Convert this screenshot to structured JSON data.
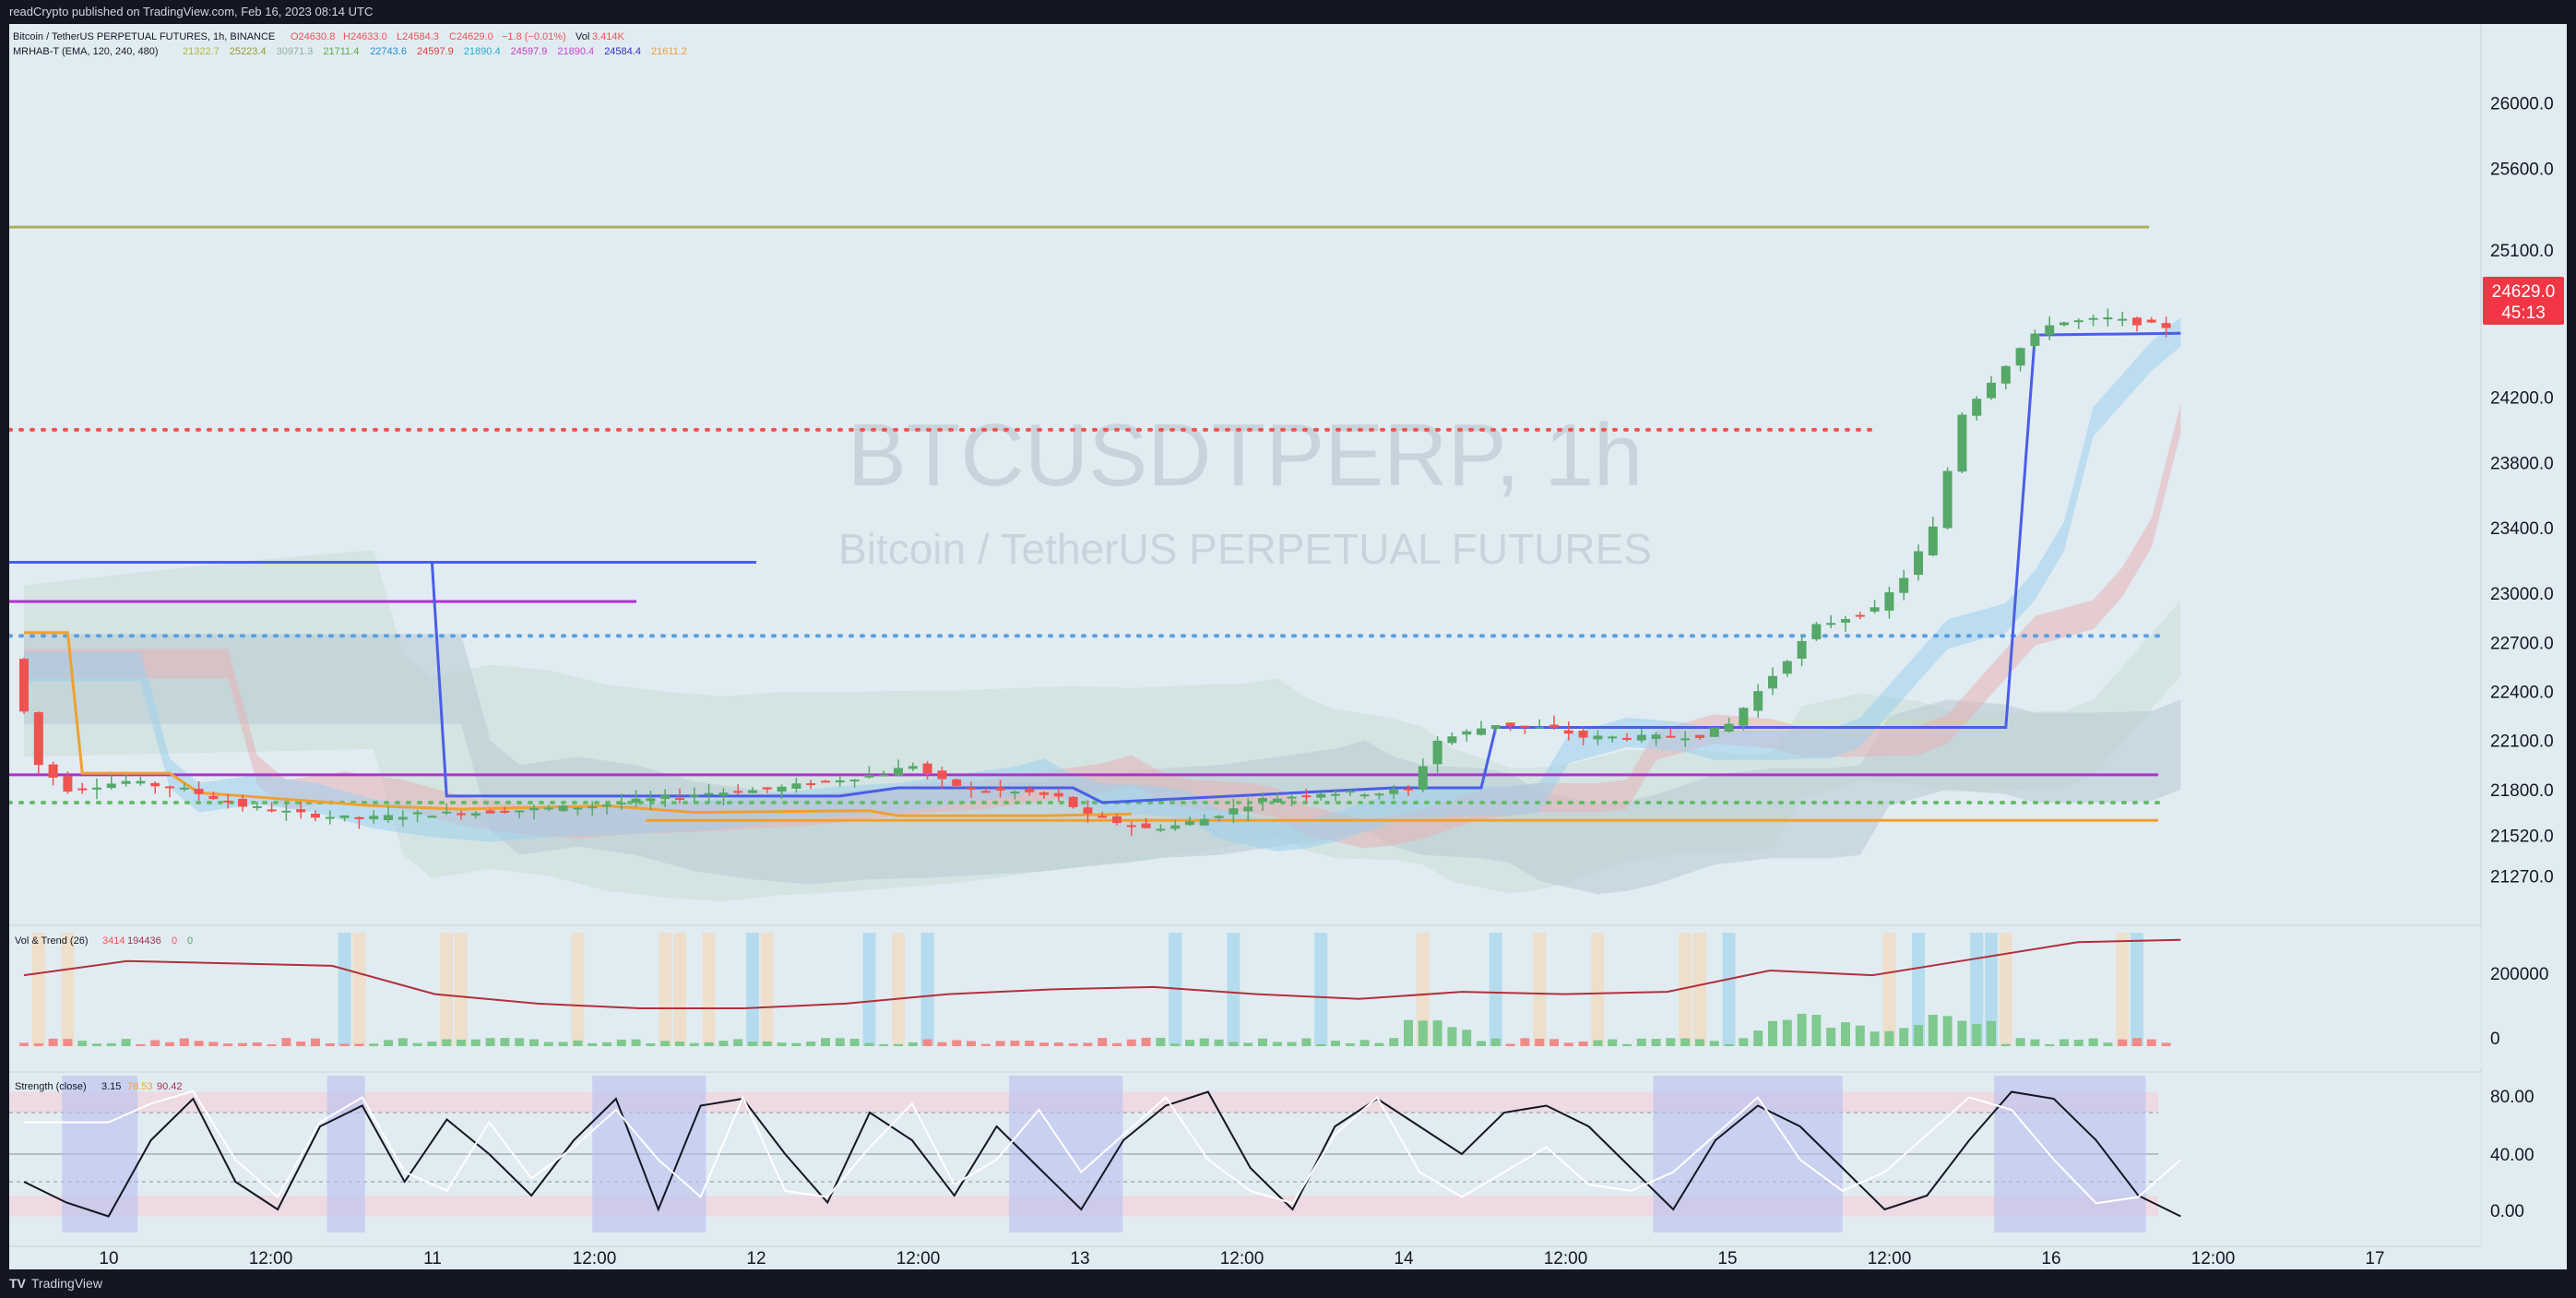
{
  "publish_note": "readCrypto published on TradingView.com, Feb 16, 2023 08:14 UTC",
  "footer_brand": "TradingView",
  "legend": {
    "title": "Bitcoin / TetherUS PERPETUAL FUTURES, 1h, BINANCE",
    "o": "O24630.8",
    "h": "H24633.0",
    "l": "L24584.3",
    "c": "C24629.0",
    "chg": "−1.8 (−0.01%)",
    "vol_label": "Vol",
    "vol": "3.414K",
    "mrhab_name": "MRHAB-T (EMA, 120, 240, 480)",
    "mrhab_values": [
      {
        "v": "21322.7",
        "color": "#b5b83a"
      },
      {
        "v": "25223.4",
        "color": "#9a9a30"
      },
      {
        "v": "30971.3",
        "color": "#8fb0a0"
      },
      {
        "v": "21711.4",
        "color": "#5ab04a"
      },
      {
        "v": "22743.6",
        "color": "#2a8fd0"
      },
      {
        "v": "24597.9",
        "color": "#e03c3c"
      },
      {
        "v": "21890.4",
        "color": "#20b0c8"
      },
      {
        "v": "24597.9",
        "color": "#c040c0"
      },
      {
        "v": "21890.4",
        "color": "#d040d0"
      },
      {
        "v": "24584.4",
        "color": "#3030c0"
      },
      {
        "v": "21611.2",
        "color": "#f0a030"
      }
    ]
  },
  "watermark": {
    "symbol": "BTCUSDTPERP, 1h",
    "desc": "Bitcoin / TetherUS PERPETUAL FUTURES"
  },
  "price_axis": {
    "labels": [
      "26000.0",
      "25600.0",
      "25100.0",
      "24200.0",
      "23800.0",
      "23400.0",
      "23000.0",
      "22700.0",
      "22400.0",
      "22100.0",
      "21800.0",
      "21520.0",
      "21270.0"
    ],
    "last_price": "24629.0",
    "countdown": "45:13"
  },
  "vol_panel": {
    "label": "Vol & Trend (26)",
    "v1": "3414",
    "v2": "194436",
    "v3": "0",
    "v4": "0",
    "axis": [
      "200000",
      "0"
    ]
  },
  "strength_panel": {
    "label": "Strength (close)",
    "v1": "3.15",
    "v2": "78.53",
    "v3": "90.42",
    "axis": [
      "80.00",
      "40.00",
      "0.00"
    ]
  },
  "time_axis": [
    "10",
    "12:00",
    "11",
    "12:00",
    "12",
    "12:00",
    "13",
    "12:00",
    "14",
    "12:00",
    "15",
    "12:00",
    "16",
    "12:00",
    "17"
  ],
  "colors": {
    "up": "#55a868",
    "down": "#ef5350",
    "frame_bg": "#e1ecf2",
    "bar_bg": "#131722",
    "price_tag": "#f23645"
  },
  "chart_data": [
    {
      "type": "candlestick",
      "title": "Bitcoin / TetherUS PERPETUAL FUTURES, 1h, BINANCE",
      "interval": "1h",
      "x": [
        "10",
        "12:00",
        "11",
        "12:00",
        "12",
        "12:00",
        "13",
        "12:00",
        "14",
        "12:00",
        "15",
        "12:00",
        "16",
        "12:00",
        "17"
      ],
      "ylim": [
        21150,
        26200
      ],
      "close_path_hours": [
        [
          0,
          22600
        ],
        [
          2,
          21950
        ],
        [
          4,
          21800
        ],
        [
          8,
          21850
        ],
        [
          12,
          21800
        ],
        [
          16,
          21700
        ],
        [
          20,
          21650
        ],
        [
          24,
          21620
        ],
        [
          28,
          21650
        ],
        [
          32,
          21660
        ],
        [
          36,
          21680
        ],
        [
          40,
          21700
        ],
        [
          44,
          21740
        ],
        [
          48,
          21780
        ],
        [
          52,
          21800
        ],
        [
          56,
          21850
        ],
        [
          60,
          21900
        ],
        [
          62,
          21950
        ],
        [
          64,
          21850
        ],
        [
          66,
          21800
        ],
        [
          70,
          21780
        ],
        [
          72,
          21750
        ],
        [
          74,
          21640
        ],
        [
          76,
          21600
        ],
        [
          78,
          21560
        ],
        [
          80,
          21580
        ],
        [
          82,
          21620
        ],
        [
          84,
          21680
        ],
        [
          86,
          21740
        ],
        [
          90,
          21780
        ],
        [
          94,
          21780
        ],
        [
          96,
          21800
        ],
        [
          98,
          22100
        ],
        [
          100,
          22150
        ],
        [
          102,
          22200
        ],
        [
          106,
          22170
        ],
        [
          108,
          22120
        ],
        [
          112,
          22120
        ],
        [
          116,
          22130
        ],
        [
          118,
          22200
        ],
        [
          120,
          22400
        ],
        [
          122,
          22600
        ],
        [
          124,
          22800
        ],
        [
          128,
          22900
        ],
        [
          130,
          23100
        ],
        [
          132,
          23400
        ],
        [
          134,
          24100
        ],
        [
          136,
          24300
        ],
        [
          138,
          24500
        ],
        [
          140,
          24650
        ],
        [
          144,
          24680
        ],
        [
          148,
          24629
        ]
      ],
      "horizontal_levels": [
        {
          "price": 25240,
          "color": "#a8b060",
          "style": "solid"
        },
        {
          "price": 24000,
          "color": "#ef5350",
          "style": "dotted"
        },
        {
          "price": 23190,
          "color": "#4a5ee8",
          "style": "solid"
        },
        {
          "price": 22950,
          "color": "#b030d0",
          "style": "solid"
        },
        {
          "price": 22740,
          "color": "#5d9fe0",
          "style": "dotted"
        },
        {
          "price": 21890,
          "color": "#b030d0",
          "style": "solid"
        },
        {
          "price": 21720,
          "color": "#66bb6a",
          "style": "dotted"
        },
        {
          "price": 21611,
          "color": "#f0a030",
          "style": "solid"
        }
      ]
    },
    {
      "type": "bar",
      "title": "Vol & Trend (26)",
      "ylim": [
        0,
        240000
      ],
      "avg_line": [
        150000,
        180000,
        175000,
        170000,
        110000,
        90000,
        80000,
        80000,
        90000,
        110000,
        120000,
        125000,
        110000,
        100000,
        115000,
        110000,
        115000,
        160000,
        150000,
        185000,
        220000,
        225000
      ]
    },
    {
      "type": "line",
      "title": "Strength (close)",
      "ylim": [
        0,
        100
      ],
      "levels": [
        80,
        40,
        0
      ],
      "values": [
        30,
        15,
        5,
        60,
        90,
        30,
        10,
        70,
        85,
        30,
        75,
        50,
        20,
        60,
        90,
        10,
        85,
        90,
        50,
        15,
        80,
        60,
        20,
        70,
        40,
        10,
        60,
        85,
        95,
        40,
        10,
        70,
        90,
        70,
        50,
        80,
        85,
        70,
        40,
        10,
        60,
        85,
        70,
        40,
        10,
        20,
        60,
        95,
        90,
        60,
        20,
        5
      ]
    }
  ]
}
